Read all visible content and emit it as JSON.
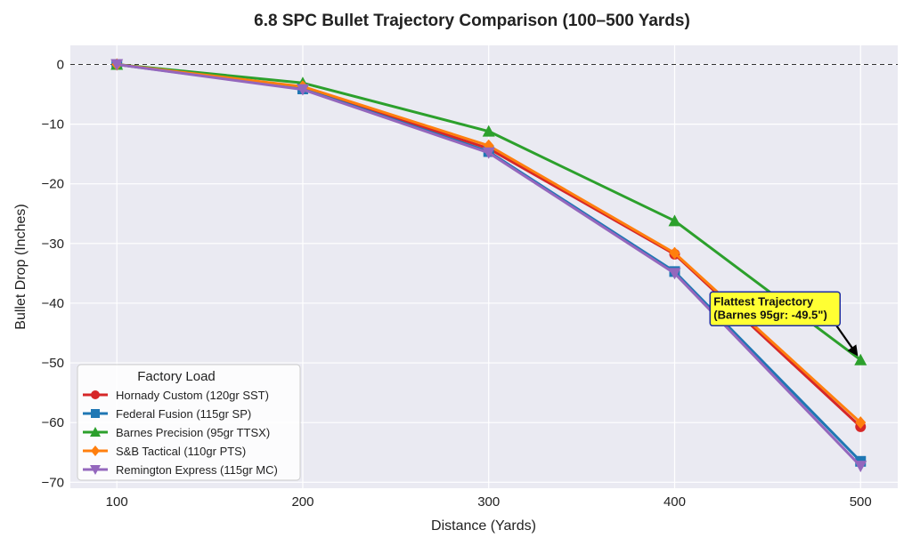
{
  "chart_data": {
    "type": "line",
    "title": "6.8 SPC Bullet Trajectory Comparison (100–500 Yards)",
    "xlabel": "Distance (Yards)",
    "ylabel": "Bullet Drop (Inches)",
    "x": [
      100,
      200,
      300,
      400,
      500
    ],
    "xticks": [
      "100",
      "200",
      "300",
      "400",
      "500"
    ],
    "yticks": [
      "0",
      "−10",
      "−20",
      "−30",
      "−40",
      "−50",
      "−60",
      "−70"
    ],
    "xlim": [
      75,
      520
    ],
    "ylim": [
      -71,
      3.2
    ],
    "grid": true,
    "zero_line": "dashed",
    "legend_title": "Factory Load",
    "legend_position": "lower-left",
    "series": [
      {
        "name": "Hornady Custom (120gr SST)",
        "color": "#d62728",
        "marker": "circle",
        "values": [
          0,
          -3.9,
          -14.1,
          -31.8,
          -60.7
        ]
      },
      {
        "name": "Federal Fusion (115gr SP)",
        "color": "#1f77b4",
        "marker": "square",
        "values": [
          0,
          -4.1,
          -14.6,
          -34.7,
          -66.5
        ]
      },
      {
        "name": "Barnes Precision (95gr TTSX)",
        "color": "#2ca02c",
        "marker": "triangle-up",
        "values": [
          0,
          -3.1,
          -11.2,
          -26.2,
          -49.5
        ]
      },
      {
        "name": "S&B Tactical (110gr PTS)",
        "color": "#ff7f0e",
        "marker": "diamond",
        "values": [
          0,
          -3.7,
          -13.6,
          -31.6,
          -60.0
        ]
      },
      {
        "name": "Remington Express (115gr MC)",
        "color": "#9467bd",
        "marker": "triangle-down",
        "values": [
          0,
          -4.2,
          -14.8,
          -35.0,
          -67.3
        ]
      }
    ],
    "annotation": {
      "lines": [
        "Flattest Trajectory",
        "(Barnes 95gr: -49.5\")"
      ],
      "target": {
        "x": 500,
        "y": -49.5
      },
      "anchor": {
        "x": 420,
        "y": -40.5
      },
      "box_color": "#ffff33",
      "border_color": "#1f2ea0"
    }
  }
}
